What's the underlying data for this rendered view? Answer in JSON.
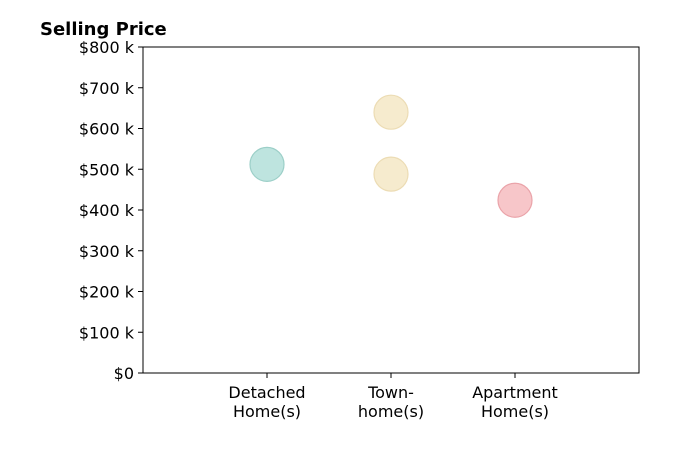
{
  "chart_data": {
    "type": "scatter",
    "title": "Selling Price",
    "xlabel": "",
    "ylabel": "",
    "categories": [
      [
        "Detached",
        "Home(s)"
      ],
      [
        "Town-",
        "home(s)"
      ],
      [
        "Apartment",
        "Home(s)"
      ]
    ],
    "xlim": [
      0,
      4
    ],
    "ylim": [
      0,
      800
    ],
    "yticks": [
      0,
      100,
      200,
      300,
      400,
      500,
      600,
      700,
      800
    ],
    "ytick_labels": [
      "$0",
      "$100 k",
      "$200 k",
      "$300 k",
      "$400 k",
      "$500 k",
      "$600 k",
      "$700 k",
      "$800 k"
    ],
    "grid": false,
    "points": [
      {
        "category": 0,
        "value": 512,
        "color": "#b3dfd9"
      },
      {
        "category": 1,
        "value": 640,
        "color": "#f5e7c6"
      },
      {
        "category": 1,
        "value": 488,
        "color": "#f5e7c6"
      },
      {
        "category": 2,
        "value": 424,
        "color": "#f6bcc0"
      }
    ],
    "edge_colors": {
      "#b3dfd9": "#9ccfc8",
      "#f5e7c6": "#ecdcb4",
      "#f6bcc0": "#eaa3a9"
    }
  }
}
